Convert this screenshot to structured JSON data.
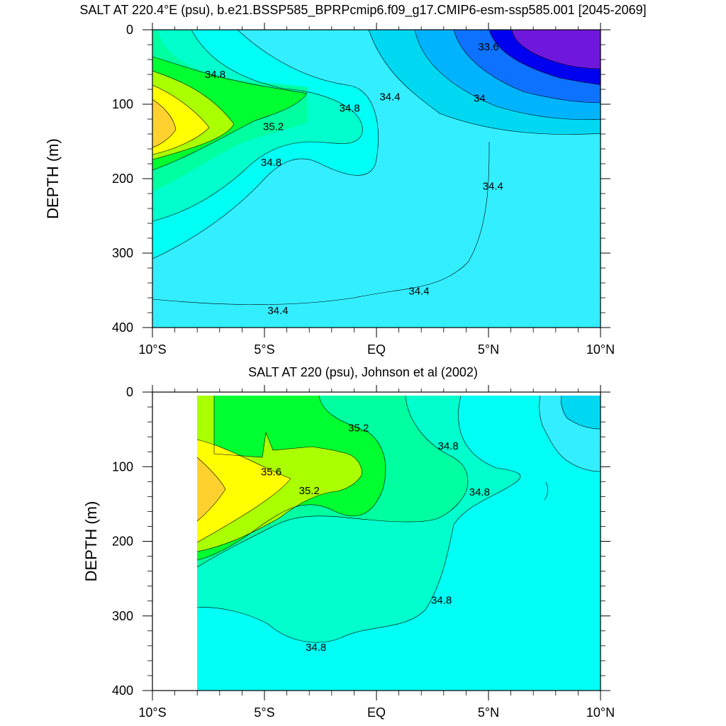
{
  "chart_data": [
    {
      "type": "contour",
      "title": "SALT AT 220.4°E (psu), b.e21.BSSP585_BPRPcmip6.f09_g17.CMIP6-esm-ssp585.001 [2045-2069]",
      "xlabel": "",
      "ylabel": "DEPTH (m)",
      "xlim": [
        -10,
        10
      ],
      "ylim": [
        0,
        400
      ],
      "y_inverted": true,
      "x_ticks": [
        -10,
        -5,
        0,
        5,
        10
      ],
      "x_tick_labels": [
        "10°S",
        "5°S",
        "EQ",
        "5°N",
        "10°N"
      ],
      "y_ticks": [
        0,
        100,
        200,
        300,
        400
      ],
      "y_tick_labels": [
        "0",
        "100",
        "200",
        "300",
        "400"
      ],
      "contour_interval": 0.2,
      "contour_labels": [
        {
          "text": "34.8",
          "x": -7.2,
          "y": 60
        },
        {
          "text": "35.2",
          "x": -4.6,
          "y": 130
        },
        {
          "text": "34.8",
          "x": -1.2,
          "y": 105
        },
        {
          "text": "34.8",
          "x": -4.7,
          "y": 178
        },
        {
          "text": "34.4",
          "x": 0.6,
          "y": 90
        },
        {
          "text": "33.6",
          "x": 5.0,
          "y": 23
        },
        {
          "text": "34",
          "x": 4.6,
          "y": 92
        },
        {
          "text": "34.4",
          "x": 5.2,
          "y": 210
        },
        {
          "text": "34.4",
          "x": 1.9,
          "y": 351
        },
        {
          "text": "34.4",
          "x": -4.4,
          "y": 377
        }
      ]
    },
    {
      "type": "contour",
      "title": "SALT AT 220 (psu), Johnson et al (2002)",
      "xlabel": "",
      "ylabel": "DEPTH (m)",
      "xlim": [
        -10,
        10
      ],
      "ylim": [
        0,
        400
      ],
      "y_inverted": true,
      "data_x_range": [
        -8,
        10
      ],
      "x_ticks": [
        -10,
        -5,
        0,
        5,
        10
      ],
      "x_tick_labels": [
        "10°S",
        "5°S",
        "EQ",
        "5°N",
        "10°N"
      ],
      "y_ticks": [
        0,
        100,
        200,
        300,
        400
      ],
      "y_tick_labels": [
        "0",
        "100",
        "200",
        "300",
        "400"
      ],
      "contour_interval": 0.2,
      "contour_labels": [
        {
          "text": "35.2",
          "x": -0.8,
          "y": 48
        },
        {
          "text": "34.8",
          "x": 3.2,
          "y": 72
        },
        {
          "text": "35.6",
          "x": -4.7,
          "y": 107
        },
        {
          "text": "35.2",
          "x": -3.0,
          "y": 132
        },
        {
          "text": "34.8",
          "x": 4.6,
          "y": 134
        },
        {
          "text": "34.8",
          "x": 2.9,
          "y": 279
        },
        {
          "text": "34.8",
          "x": -2.7,
          "y": 342
        }
      ]
    }
  ],
  "colors": {
    "s33_4": "#6f17dd",
    "s33_6": "#0000f0",
    "s33_8": "#0d72ff",
    "s34_0": "#00b3ff",
    "s34_2": "#00d8f2",
    "s34_4": "#33eeff",
    "s34_6": "#00fff4",
    "s34_8": "#00ffcc",
    "s35_0": "#00ffa0",
    "s35_2": "#00ff30",
    "s35_4": "#aaff00",
    "s35_6": "#ffff00",
    "s35_8": "#ffd12e"
  }
}
